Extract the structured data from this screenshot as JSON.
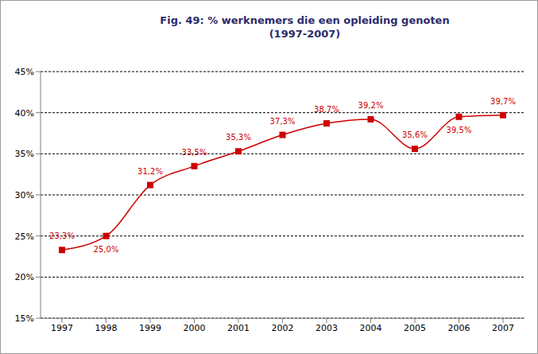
{
  "chart_data": {
    "type": "line",
    "title": "Fig. 49: % werknemers die een opleiding genoten",
    "subtitle": "(1997-2007)",
    "categories": [
      "1997",
      "1998",
      "1999",
      "2000",
      "2001",
      "2002",
      "2003",
      "2004",
      "2005",
      "2006",
      "2007"
    ],
    "values": [
      23.3,
      25.0,
      31.2,
      33.5,
      35.3,
      37.3,
      38.7,
      39.2,
      35.6,
      39.5,
      39.7
    ],
    "value_labels": [
      "23,3%",
      "25,0%",
      "31,2%",
      "33,5%",
      "35,3%",
      "37,3%",
      "38,7%",
      "39,2%",
      "35,6%",
      "39,5%",
      "39,7%"
    ],
    "color": "#cc0000",
    "marker": "square",
    "line_style": "solid",
    "ylim": [
      15,
      45
    ],
    "yticks": [
      {
        "value": 15,
        "label": "15%"
      },
      {
        "value": 20,
        "label": "20%"
      },
      {
        "value": 25,
        "label": "25%"
      },
      {
        "value": 30,
        "label": "30%"
      },
      {
        "value": 35,
        "label": "35%"
      },
      {
        "value": 40,
        "label": "40%"
      },
      {
        "value": 45,
        "label": "45%"
      }
    ],
    "grid": true,
    "data_labels": true
  }
}
